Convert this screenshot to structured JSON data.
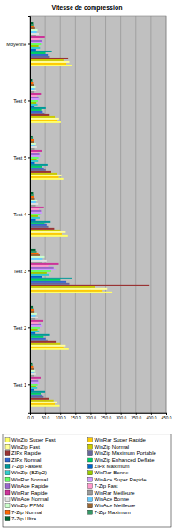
{
  "chart_data": {
    "type": "bar",
    "title": "Vitesse de compression",
    "orientation": "horizontal",
    "grid": true,
    "legend": "bottom",
    "categories": [
      "Test 1",
      "Test 2",
      "Test 3",
      "Test 4",
      "Test 5",
      "Test 6",
      "Moyenne"
    ],
    "xlim": [
      0,
      450
    ],
    "xticks": [
      {
        "value": 0,
        "label": "0.0"
      },
      {
        "value": 50,
        "label": "50.0"
      },
      {
        "value": 100,
        "label": "100.0"
      },
      {
        "value": 150,
        "label": "150.0"
      },
      {
        "value": 200,
        "label": "200.0"
      },
      {
        "value": 250,
        "label": "250.0"
      },
      {
        "value": 300,
        "label": "300.0"
      },
      {
        "value": 350,
        "label": "350.0"
      },
      {
        "value": 400,
        "label": "400.0"
      },
      {
        "value": 450,
        "label": "450.0"
      }
    ],
    "series": [
      {
        "name": "WinZip Super Fast",
        "color": "#ffff66",
        "values": [
          98,
          128,
          272,
          125,
          110,
          102,
          139
        ]
      },
      {
        "name": "WinRar Super Rapide",
        "color": "#ffcc00",
        "values": [
          82,
          110,
          240,
          105,
          95,
          88,
          120
        ]
      },
      {
        "name": "WinZip Fast",
        "color": "#ffff99",
        "values": [
          90,
          118,
          255,
          118,
          104,
          96,
          130
        ]
      },
      {
        "name": "WinZip Normal",
        "color": "#cccc00",
        "values": [
          78,
          100,
          215,
          100,
          88,
          82,
          110.5
        ]
      },
      {
        "name": "ZIPx Rapide",
        "color": "#993333",
        "values": [
          62,
          85,
          395,
          80,
          70,
          65,
          126
        ]
      },
      {
        "name": "WinZip Maximum Portable",
        "color": "#666699",
        "values": [
          45,
          58,
          130,
          60,
          52,
          48,
          65.5
        ]
      },
      {
        "name": "ZIPx Normal",
        "color": "#3366cc",
        "values": [
          40,
          52,
          120,
          55,
          46,
          42,
          59
        ]
      },
      {
        "name": "WinZip Enhanced Deflate",
        "color": "#00cc66",
        "values": [
          35,
          45,
          100,
          48,
          40,
          37,
          51
        ]
      },
      {
        "name": "7-Zip Fastest",
        "color": "#009999",
        "values": [
          50,
          66,
          140,
          68,
          58,
          52,
          72
        ]
      },
      {
        "name": "ZIPx Maximum",
        "color": "#0066cc",
        "values": [
          14,
          18,
          40,
          19,
          16,
          15,
          20
        ]
      },
      {
        "name": "WinZip (BZip2)",
        "color": "#33cccc",
        "values": [
          24,
          30,
          62,
          32,
          27,
          25,
          33
        ]
      },
      {
        "name": "WinRar Bonne",
        "color": "#99cc00",
        "values": [
          20,
          25,
          55,
          26,
          22,
          21,
          28
        ]
      },
      {
        "name": "WinRar Normal",
        "color": "#66ff66",
        "values": [
          25,
          32,
          70,
          33,
          28,
          26,
          36
        ]
      },
      {
        "name": "WinAce Super Rapide",
        "color": "#cc99ff",
        "values": [
          30,
          38,
          85,
          40,
          34,
          31,
          43
        ]
      },
      {
        "name": "WinAce Rapide",
        "color": "#9966cc",
        "values": [
          27,
          35,
          78,
          36,
          31,
          28,
          39
        ]
      },
      {
        "name": "7-Zip Fast",
        "color": "#ff99cc",
        "values": [
          22,
          28,
          60,
          29,
          25,
          23,
          31
        ]
      },
      {
        "name": "WinRar Rapide",
        "color": "#cc3399",
        "values": [
          35,
          44,
          95,
          46,
          39,
          36,
          49
        ]
      },
      {
        "name": "WinRar Meilleure",
        "color": "#999999",
        "values": [
          14,
          18,
          38,
          19,
          16,
          15,
          20
        ]
      },
      {
        "name": "WinAce Normal",
        "color": "#e0e0e0",
        "values": [
          20,
          26,
          55,
          27,
          23,
          21,
          29
        ]
      },
      {
        "name": "WinAce Bonne",
        "color": "#66ccff",
        "values": [
          15,
          19,
          42,
          20,
          17,
          16,
          22
        ]
      },
      {
        "name": "WinZip PPMd",
        "color": "#ccffcc",
        "values": [
          18,
          23,
          48,
          24,
          20,
          19,
          25
        ]
      },
      {
        "name": "WinAce Meilleure",
        "color": "#996633",
        "values": [
          12,
          15,
          32,
          16,
          13,
          12,
          17
        ]
      },
      {
        "name": "7-Zip Normal",
        "color": "#ff6600",
        "values": [
          10,
          13,
          28,
          14,
          12,
          10,
          15
        ]
      },
      {
        "name": "7-Zip Maximum",
        "color": "#339966",
        "values": [
          8,
          10,
          22,
          11,
          9,
          8,
          11
        ]
      },
      {
        "name": "7-Zip Ultra",
        "color": "#006633",
        "values": [
          7,
          9,
          19,
          10,
          8,
          7,
          10
        ]
      }
    ]
  }
}
